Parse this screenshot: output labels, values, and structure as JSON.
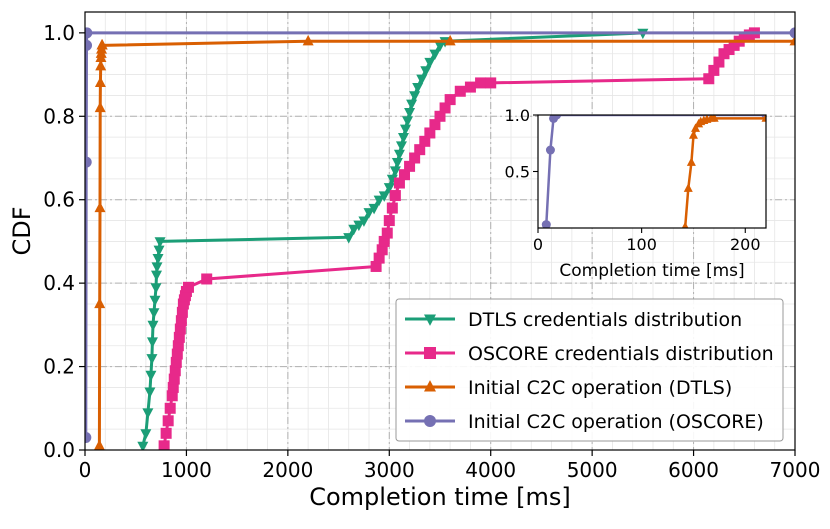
{
  "chart_data": [
    {
      "type": "line",
      "xlabel": "Completion time [ms]",
      "ylabel": "CDF",
      "xlim": [
        0,
        7000
      ],
      "ylim": [
        0,
        1.05
      ],
      "xticks": [
        "0",
        "1000",
        "2000",
        "3000",
        "4000",
        "5000",
        "6000",
        "7000"
      ],
      "yticks": [
        "0.0",
        "0.2",
        "0.4",
        "0.6",
        "0.8",
        "1.0"
      ],
      "grid": true,
      "legend": "bottom-right",
      "series": [
        {
          "name": "DTLS credentials distribution",
          "color": "#1b9e77",
          "marker": "triangle-down",
          "x": [
            570,
            600,
            620,
            640,
            650,
            660,
            665,
            670,
            680,
            690,
            700,
            705,
            710,
            720,
            730,
            740,
            2600,
            2650,
            2700,
            2750,
            2800,
            2850,
            2900,
            2950,
            3000,
            3030,
            3060,
            3080,
            3100,
            3120,
            3140,
            3160,
            3180,
            3200,
            3220,
            3250,
            3280,
            3320,
            3360,
            3400,
            3450,
            3500,
            3550,
            5500
          ],
          "y": [
            0.01,
            0.04,
            0.09,
            0.14,
            0.18,
            0.22,
            0.26,
            0.3,
            0.33,
            0.36,
            0.39,
            0.42,
            0.44,
            0.46,
            0.48,
            0.5,
            0.51,
            0.53,
            0.54,
            0.55,
            0.57,
            0.58,
            0.6,
            0.61,
            0.63,
            0.65,
            0.67,
            0.69,
            0.71,
            0.73,
            0.75,
            0.77,
            0.79,
            0.81,
            0.83,
            0.85,
            0.87,
            0.89,
            0.91,
            0.93,
            0.95,
            0.97,
            0.98,
            1.0
          ]
        },
        {
          "name": "OSCORE credentials distribution",
          "color": "#e7298a",
          "marker": "square",
          "x": [
            780,
            800,
            820,
            840,
            860,
            870,
            880,
            890,
            900,
            910,
            920,
            930,
            940,
            950,
            960,
            970,
            980,
            990,
            1000,
            1020,
            1200,
            2870,
            2900,
            2930,
            2950,
            2980,
            3000,
            3030,
            3060,
            3100,
            3150,
            3200,
            3250,
            3300,
            3350,
            3400,
            3450,
            3500,
            3550,
            3600,
            3700,
            3800,
            3900,
            4000,
            6150,
            6200,
            6250,
            6300,
            6350,
            6400,
            6450,
            6500,
            6550,
            6600
          ],
          "y": [
            0.01,
            0.04,
            0.07,
            0.1,
            0.13,
            0.15,
            0.17,
            0.19,
            0.21,
            0.23,
            0.25,
            0.27,
            0.29,
            0.31,
            0.33,
            0.35,
            0.36,
            0.37,
            0.38,
            0.39,
            0.41,
            0.44,
            0.46,
            0.48,
            0.5,
            0.52,
            0.55,
            0.58,
            0.61,
            0.64,
            0.66,
            0.68,
            0.7,
            0.72,
            0.74,
            0.76,
            0.78,
            0.8,
            0.82,
            0.84,
            0.86,
            0.87,
            0.88,
            0.88,
            0.89,
            0.91,
            0.93,
            0.95,
            0.96,
            0.97,
            0.98,
            0.99,
            0.995,
            1.0
          ]
        },
        {
          "name": "Initial C2C operation (DTLS)",
          "color": "#d95f02",
          "marker": "triangle-up",
          "x": [
            142,
            145,
            148,
            150,
            152,
            155,
            157,
            160,
            163,
            167,
            170,
            2200,
            3600,
            7000
          ],
          "y": [
            0.01,
            0.35,
            0.58,
            0.82,
            0.88,
            0.92,
            0.94,
            0.95,
            0.96,
            0.97,
            0.97,
            0.98,
            0.98,
            0.98
          ]
        },
        {
          "name": "Initial C2C operation (OSCORE)",
          "color": "#7570b3",
          "marker": "circle",
          "x": [
            8,
            12,
            15,
            18,
            7000
          ],
          "y": [
            0.03,
            0.69,
            0.97,
            1.0,
            1.0
          ]
        }
      ]
    },
    {
      "type": "line",
      "xlabel": "Completion time [ms]",
      "ylabel": "",
      "xlim": [
        0,
        220
      ],
      "ylim": [
        0,
        1.0
      ],
      "xticks": [
        "0",
        "100",
        "200"
      ],
      "yticks": [
        "0.5",
        "1.0"
      ],
      "grid": false,
      "series": [
        {
          "color": "#7570b3",
          "marker": "circle",
          "x": [
            8,
            12,
            15,
            18,
            220
          ],
          "y": [
            0.03,
            0.69,
            0.97,
            1.0,
            1.0
          ]
        },
        {
          "color": "#d95f02",
          "marker": "triangle-up",
          "x": [
            142,
            145,
            148,
            150,
            152,
            155,
            157,
            160,
            163,
            167,
            170,
            220
          ],
          "y": [
            0.01,
            0.35,
            0.58,
            0.82,
            0.88,
            0.92,
            0.94,
            0.95,
            0.96,
            0.97,
            0.97,
            0.97
          ]
        }
      ]
    }
  ]
}
